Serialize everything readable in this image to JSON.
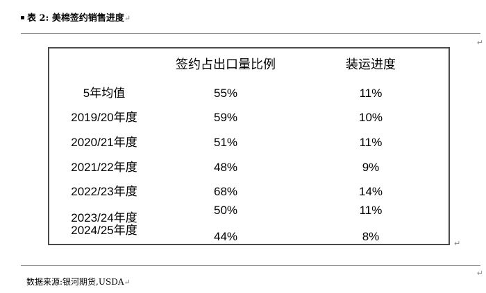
{
  "caption": {
    "prefix": "表 2:",
    "title": "美棉签约销售进度",
    "para_mark": "↵"
  },
  "table": {
    "headers": [
      "签约占出口量比例",
      "装运进度"
    ],
    "rows": [
      {
        "label": "5年均值",
        "ratio": "55%",
        "shipment": "11%"
      },
      {
        "label": "2019/20年度",
        "ratio": "59%",
        "shipment": "10%"
      },
      {
        "label": "2020/21年度",
        "ratio": "51%",
        "shipment": "11%"
      },
      {
        "label": "2021/22年度",
        "ratio": "48%",
        "shipment": "9%"
      },
      {
        "label": "2022/23年度",
        "ratio": "68%",
        "shipment": "14%"
      },
      {
        "label": "2023/24年度",
        "ratio": "50%",
        "shipment": "11%"
      },
      {
        "label": "2024/25年度",
        "ratio": "44%",
        "shipment": "8%"
      }
    ]
  },
  "source": {
    "text": "数据来源:银河期货,USDA"
  },
  "margin_marks": {
    "arrow": "↵"
  }
}
